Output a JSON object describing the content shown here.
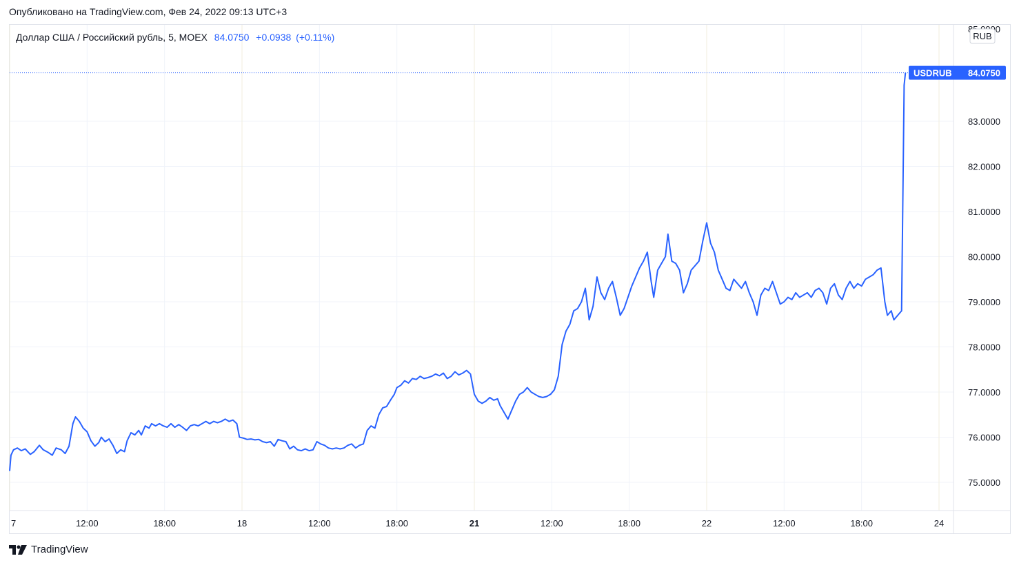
{
  "header": {
    "published_text": "Опубликовано на TradingView.com, Фев 24, 2022 09:13 UTC+3"
  },
  "legend": {
    "symbol_text": "Доллар США / Российский рубль, 5, MOEX",
    "last_price": "84.0750",
    "change": "+0.0938",
    "change_pct": "(+0.11%)"
  },
  "price_axis": {
    "currency": "RUB",
    "top_tick_partial": "85.0000"
  },
  "price_tag": {
    "symbol": "USDRUB",
    "value": "84.0750"
  },
  "footer": {
    "brand": "TradingView"
  },
  "colors": {
    "line": "#2962ff",
    "grid": "#f0f3fa",
    "axis_border": "#e0e3eb",
    "tag_bg": "#2962ff"
  },
  "chart_data": {
    "type": "line",
    "title": "",
    "ylabel": "",
    "xlabel": "",
    "ylim": [
      74.4,
      85.5
    ],
    "y_ticks": [
      {
        "value": 75,
        "label": "75.0000"
      },
      {
        "value": 76,
        "label": "76.0000"
      },
      {
        "value": 77,
        "label": "77.0000"
      },
      {
        "value": 78,
        "label": "78.0000"
      },
      {
        "value": 79,
        "label": "79.0000"
      },
      {
        "value": 80,
        "label": "80.0000"
      },
      {
        "value": 81,
        "label": "81.0000"
      },
      {
        "value": 82,
        "label": "82.0000"
      },
      {
        "value": 83,
        "label": "83.0000"
      }
    ],
    "x_ticks": [
      {
        "t": 0,
        "label": "7",
        "bold": false
      },
      {
        "t": 6,
        "label": "12:00",
        "bold": false
      },
      {
        "t": 12,
        "label": "18:00",
        "bold": false
      },
      {
        "t": 18,
        "label": "18",
        "bold": false
      },
      {
        "t": 24,
        "label": "12:00",
        "bold": false
      },
      {
        "t": 30,
        "label": "18:00",
        "bold": false
      },
      {
        "t": 36,
        "label": "21",
        "bold": true
      },
      {
        "t": 42,
        "label": "12:00",
        "bold": false
      },
      {
        "t": 48,
        "label": "18:00",
        "bold": false
      },
      {
        "t": 54,
        "label": "22",
        "bold": false
      },
      {
        "t": 60,
        "label": "12:00",
        "bold": false
      },
      {
        "t": 66,
        "label": "18:00",
        "bold": false
      },
      {
        "t": 72,
        "label": "24",
        "bold": false
      }
    ],
    "grid": true,
    "series": [
      {
        "name": "USDRUB",
        "points": [
          [
            0,
            75.25
          ],
          [
            0.1,
            75.6
          ],
          [
            0.3,
            75.72
          ],
          [
            0.6,
            75.76
          ],
          [
            0.9,
            75.7
          ],
          [
            1.2,
            75.74
          ],
          [
            1.6,
            75.62
          ],
          [
            1.9,
            75.68
          ],
          [
            2.3,
            75.82
          ],
          [
            2.6,
            75.72
          ],
          [
            3.0,
            75.66
          ],
          [
            3.3,
            75.6
          ],
          [
            3.6,
            75.76
          ],
          [
            4.0,
            75.72
          ],
          [
            4.3,
            75.64
          ],
          [
            4.6,
            75.8
          ],
          [
            4.9,
            76.3
          ],
          [
            5.1,
            76.45
          ],
          [
            5.4,
            76.35
          ],
          [
            5.7,
            76.2
          ],
          [
            6.0,
            76.12
          ],
          [
            6.3,
            75.92
          ],
          [
            6.6,
            75.8
          ],
          [
            6.9,
            75.88
          ],
          [
            7.1,
            76.0
          ],
          [
            7.4,
            75.9
          ],
          [
            7.7,
            75.96
          ],
          [
            8.0,
            75.82
          ],
          [
            8.3,
            75.64
          ],
          [
            8.6,
            75.72
          ],
          [
            8.9,
            75.68
          ],
          [
            9.1,
            75.92
          ],
          [
            9.4,
            76.1
          ],
          [
            9.7,
            76.05
          ],
          [
            10.0,
            76.15
          ],
          [
            10.2,
            76.05
          ],
          [
            10.5,
            76.25
          ],
          [
            10.8,
            76.2
          ],
          [
            11.0,
            76.3
          ],
          [
            11.3,
            76.25
          ],
          [
            11.6,
            76.3
          ],
          [
            11.9,
            76.25
          ],
          [
            12.2,
            76.22
          ],
          [
            12.5,
            76.3
          ],
          [
            12.8,
            76.22
          ],
          [
            13.1,
            76.28
          ],
          [
            13.4,
            76.22
          ],
          [
            13.7,
            76.15
          ],
          [
            14.0,
            76.25
          ],
          [
            14.3,
            76.28
          ],
          [
            14.6,
            76.25
          ],
          [
            14.9,
            76.3
          ],
          [
            15.2,
            76.35
          ],
          [
            15.5,
            76.3
          ],
          [
            15.8,
            76.35
          ],
          [
            16.1,
            76.32
          ],
          [
            16.4,
            76.35
          ],
          [
            16.7,
            76.4
          ],
          [
            17.0,
            76.35
          ],
          [
            17.3,
            76.38
          ],
          [
            17.6,
            76.3
          ],
          [
            17.8,
            76.0
          ],
          [
            18.1,
            75.98
          ],
          [
            18.4,
            75.95
          ],
          [
            18.7,
            75.96
          ],
          [
            19.0,
            75.94
          ],
          [
            19.3,
            75.95
          ],
          [
            19.6,
            75.9
          ],
          [
            19.9,
            75.88
          ],
          [
            20.2,
            75.9
          ],
          [
            20.5,
            75.8
          ],
          [
            20.8,
            75.95
          ],
          [
            21.1,
            75.92
          ],
          [
            21.4,
            75.9
          ],
          [
            21.7,
            75.74
          ],
          [
            22.0,
            75.8
          ],
          [
            22.3,
            75.72
          ],
          [
            22.6,
            75.7
          ],
          [
            22.9,
            75.74
          ],
          [
            23.2,
            75.7
          ],
          [
            23.5,
            75.72
          ],
          [
            23.8,
            75.9
          ],
          [
            24.1,
            75.85
          ],
          [
            24.4,
            75.82
          ],
          [
            24.7,
            75.76
          ],
          [
            25.0,
            75.74
          ],
          [
            25.3,
            75.76
          ],
          [
            25.6,
            75.74
          ],
          [
            25.9,
            75.76
          ],
          [
            26.2,
            75.82
          ],
          [
            26.5,
            75.85
          ],
          [
            26.8,
            75.76
          ],
          [
            27.1,
            75.82
          ],
          [
            27.4,
            75.85
          ],
          [
            27.7,
            76.15
          ],
          [
            28.0,
            76.25
          ],
          [
            28.3,
            76.2
          ],
          [
            28.6,
            76.5
          ],
          [
            28.9,
            76.65
          ],
          [
            29.2,
            76.68
          ],
          [
            29.5,
            76.82
          ],
          [
            29.8,
            76.95
          ],
          [
            30.0,
            77.1
          ],
          [
            30.3,
            77.15
          ],
          [
            30.6,
            77.25
          ],
          [
            30.9,
            77.2
          ],
          [
            31.2,
            77.3
          ],
          [
            31.5,
            77.28
          ],
          [
            31.8,
            77.35
          ],
          [
            32.1,
            77.3
          ],
          [
            32.4,
            77.32
          ],
          [
            32.7,
            77.35
          ],
          [
            33.0,
            77.4
          ],
          [
            33.3,
            77.36
          ],
          [
            33.6,
            77.42
          ],
          [
            33.9,
            77.3
          ],
          [
            34.2,
            77.35
          ],
          [
            34.5,
            77.45
          ],
          [
            34.8,
            77.38
          ],
          [
            35.1,
            77.42
          ],
          [
            35.4,
            77.48
          ],
          [
            35.7,
            77.4
          ],
          [
            36.0,
            76.95
          ],
          [
            36.3,
            76.8
          ],
          [
            36.6,
            76.75
          ],
          [
            36.9,
            76.8
          ],
          [
            37.2,
            76.88
          ],
          [
            37.5,
            76.82
          ],
          [
            37.8,
            76.85
          ],
          [
            38.0,
            76.7
          ],
          [
            38.3,
            76.55
          ],
          [
            38.6,
            76.4
          ],
          [
            38.9,
            76.6
          ],
          [
            39.2,
            76.8
          ],
          [
            39.5,
            76.95
          ],
          [
            39.8,
            77.0
          ],
          [
            40.1,
            77.1
          ],
          [
            40.4,
            77.0
          ],
          [
            40.7,
            76.95
          ],
          [
            41.0,
            76.9
          ],
          [
            41.3,
            76.88
          ],
          [
            41.6,
            76.9
          ],
          [
            41.9,
            76.95
          ],
          [
            42.2,
            77.05
          ],
          [
            42.5,
            77.35
          ],
          [
            42.8,
            78.05
          ],
          [
            43.1,
            78.35
          ],
          [
            43.4,
            78.5
          ],
          [
            43.7,
            78.8
          ],
          [
            44.0,
            78.85
          ],
          [
            44.3,
            79.0
          ],
          [
            44.6,
            79.3
          ],
          [
            44.9,
            78.6
          ],
          [
            45.2,
            78.9
          ],
          [
            45.5,
            79.55
          ],
          [
            45.8,
            79.2
          ],
          [
            46.1,
            79.05
          ],
          [
            46.4,
            79.3
          ],
          [
            46.7,
            79.45
          ],
          [
            47.0,
            79.1
          ],
          [
            47.3,
            78.7
          ],
          [
            47.6,
            78.85
          ],
          [
            47.9,
            79.1
          ],
          [
            48.2,
            79.35
          ],
          [
            48.5,
            79.55
          ],
          [
            48.8,
            79.75
          ],
          [
            49.1,
            79.9
          ],
          [
            49.4,
            80.1
          ],
          [
            49.7,
            79.45
          ],
          [
            49.9,
            79.1
          ],
          [
            50.2,
            79.7
          ],
          [
            50.5,
            79.85
          ],
          [
            50.8,
            80.0
          ],
          [
            51.0,
            80.5
          ],
          [
            51.3,
            79.9
          ],
          [
            51.6,
            79.85
          ],
          [
            51.9,
            79.7
          ],
          [
            52.2,
            79.2
          ],
          [
            52.5,
            79.4
          ],
          [
            52.8,
            79.7
          ],
          [
            53.1,
            79.8
          ],
          [
            53.4,
            79.9
          ],
          [
            53.7,
            80.35
          ],
          [
            54.0,
            80.75
          ],
          [
            54.3,
            80.3
          ],
          [
            54.6,
            80.1
          ],
          [
            54.9,
            79.7
          ],
          [
            55.2,
            79.5
          ],
          [
            55.5,
            79.3
          ],
          [
            55.8,
            79.25
          ],
          [
            56.1,
            79.5
          ],
          [
            56.4,
            79.4
          ],
          [
            56.7,
            79.3
          ],
          [
            57.0,
            79.45
          ],
          [
            57.3,
            79.2
          ],
          [
            57.6,
            79.0
          ],
          [
            57.9,
            78.7
          ],
          [
            58.2,
            79.15
          ],
          [
            58.5,
            79.3
          ],
          [
            58.8,
            79.25
          ],
          [
            59.1,
            79.45
          ],
          [
            59.4,
            79.2
          ],
          [
            59.7,
            78.95
          ],
          [
            60.0,
            79.0
          ],
          [
            60.3,
            79.1
          ],
          [
            60.6,
            79.05
          ],
          [
            60.9,
            79.2
          ],
          [
            61.2,
            79.1
          ],
          [
            61.5,
            79.15
          ],
          [
            61.8,
            79.2
          ],
          [
            62.1,
            79.1
          ],
          [
            62.4,
            79.25
          ],
          [
            62.7,
            79.3
          ],
          [
            63.0,
            79.2
          ],
          [
            63.3,
            78.95
          ],
          [
            63.6,
            79.3
          ],
          [
            63.9,
            79.4
          ],
          [
            64.2,
            79.15
          ],
          [
            64.5,
            79.05
          ],
          [
            64.8,
            79.3
          ],
          [
            65.1,
            79.45
          ],
          [
            65.4,
            79.3
          ],
          [
            65.7,
            79.4
          ],
          [
            66.0,
            79.35
          ],
          [
            66.3,
            79.5
          ],
          [
            66.6,
            79.55
          ],
          [
            66.9,
            79.6
          ],
          [
            67.2,
            79.7
          ],
          [
            67.5,
            79.75
          ],
          [
            67.8,
            79.0
          ],
          [
            68.0,
            78.7
          ],
          [
            68.3,
            78.8
          ],
          [
            68.5,
            78.6
          ],
          [
            68.8,
            78.7
          ],
          [
            69.1,
            78.8
          ],
          [
            69.3,
            83.8
          ],
          [
            69.4,
            84.075
          ]
        ]
      }
    ]
  }
}
